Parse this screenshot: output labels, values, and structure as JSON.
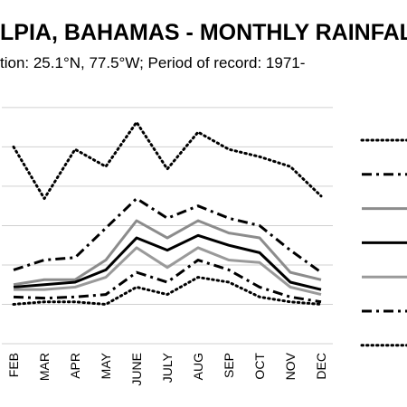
{
  "chart_data": {
    "type": "line",
    "title": "LPIA, BAHAMAS - MONTHLY RAINFALL",
    "subtitle": "tion: 25.1°N, 77.5°W; Period of record: 1971-",
    "xlabel": "",
    "ylabel": "",
    "categories": [
      "FEB",
      "MAR",
      "APR",
      "MAY",
      "JUNE",
      "JULY",
      "AUG",
      "SEP",
      "OCT",
      "NOV",
      "DEC"
    ],
    "ylim": [
      0,
      10
    ],
    "grid": true,
    "legend_position": "right",
    "series": [
      {
        "values": [
          8.0,
          5.9,
          7.9,
          7.2,
          9.0,
          7.1,
          8.6,
          7.9,
          7.6,
          7.2,
          6.0
        ],
        "color": "#000000",
        "style": "dotted"
      },
      {
        "values": [
          3.0,
          3.4,
          3.5,
          4.7,
          5.9,
          5.1,
          5.6,
          5.1,
          4.8,
          3.8,
          2.9
        ],
        "color": "#000000",
        "style": "dashdot"
      },
      {
        "values": [
          2.4,
          2.6,
          2.6,
          3.4,
          5.0,
          4.3,
          5.0,
          4.5,
          4.3,
          2.9,
          2.6
        ],
        "color": "#8c8c8c",
        "style": "solid"
      },
      {
        "values": [
          2.3,
          2.4,
          2.5,
          3.0,
          4.3,
          3.8,
          4.4,
          4.0,
          3.7,
          2.5,
          2.2
        ],
        "color": "#000000",
        "style": "solid"
      },
      {
        "values": [
          2.2,
          2.2,
          2.3,
          2.7,
          3.9,
          3.1,
          3.9,
          3.4,
          3.3,
          2.3,
          2.0
        ],
        "color": "#9a9a9a",
        "style": "solid"
      },
      {
        "values": [
          1.9,
          1.85,
          1.9,
          2.0,
          2.9,
          2.5,
          3.4,
          3.0,
          2.3,
          1.9,
          1.7
        ],
        "color": "#000000",
        "style": "dashdot"
      },
      {
        "values": [
          1.6,
          1.7,
          1.7,
          1.6,
          2.3,
          2.0,
          2.7,
          2.5,
          1.9,
          1.7,
          1.6
        ],
        "color": "#000000",
        "style": "dotted"
      }
    ]
  }
}
